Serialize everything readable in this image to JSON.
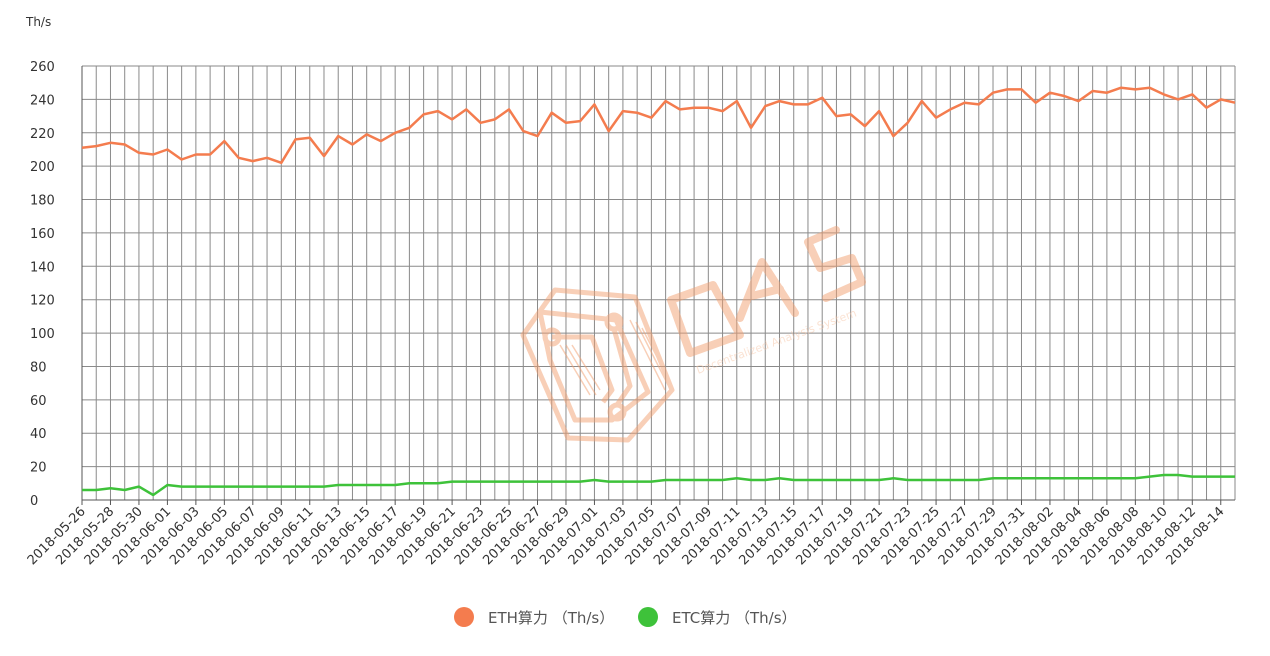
{
  "chart_data": {
    "type": "line",
    "ylabel": "Th/s",
    "ylim": [
      0,
      260
    ],
    "yticks": [
      0,
      20,
      40,
      60,
      80,
      100,
      120,
      140,
      160,
      180,
      200,
      220,
      240,
      260
    ],
    "grid": true,
    "legend_position": "bottom",
    "x_start": "2018-05-26",
    "x_end": "2018-08-14",
    "x_tick_labels": [
      "2018-05-26",
      "2018-05-28",
      "2018-05-30",
      "2018-06-01",
      "2018-06-03",
      "2018-06-05",
      "2018-06-07",
      "2018-06-09",
      "2018-06-11",
      "2018-06-13",
      "2018-06-15",
      "2018-06-17",
      "2018-06-19",
      "2018-06-21",
      "2018-06-23",
      "2018-06-25",
      "2018-06-27",
      "2018-06-29",
      "2018-07-01",
      "2018-07-03",
      "2018-07-05",
      "2018-07-07",
      "2018-07-09",
      "2018-07-11",
      "2018-07-13",
      "2018-07-15",
      "2018-07-17",
      "2018-07-19",
      "2018-07-21",
      "2018-07-23",
      "2018-07-25",
      "2018-07-27",
      "2018-07-29",
      "2018-07-31",
      "2018-08-02",
      "2018-08-04",
      "2018-08-06",
      "2018-08-08",
      "2018-08-10",
      "2018-08-12",
      "2018-08-14"
    ],
    "series": [
      {
        "name": "ETH算力 （Th/s）",
        "color": "#f47c4e",
        "values": [
          211,
          212,
          214,
          213,
          208,
          207,
          210,
          204,
          207,
          207,
          215,
          205,
          203,
          205,
          202,
          216,
          217,
          206,
          218,
          213,
          219,
          215,
          220,
          223,
          231,
          233,
          228,
          234,
          226,
          228,
          234,
          221,
          218,
          232,
          226,
          227,
          237,
          221,
          233,
          232,
          229,
          239,
          234,
          235,
          235,
          233,
          239,
          223,
          236,
          239,
          237,
          237,
          241,
          230,
          231,
          224,
          233,
          218,
          226,
          239,
          229,
          234,
          238,
          237,
          244,
          246,
          246,
          238,
          244,
          242,
          239,
          245,
          244,
          247,
          246,
          247,
          243,
          240,
          243,
          235,
          240,
          238
        ]
      },
      {
        "name": "ETC算力 （Th/s）",
        "color": "#3ec23a",
        "values": [
          6,
          6,
          7,
          6,
          8,
          3,
          9,
          8,
          8,
          8,
          8,
          8,
          8,
          8,
          8,
          8,
          8,
          8,
          9,
          9,
          9,
          9,
          9,
          10,
          10,
          10,
          11,
          11,
          11,
          11,
          11,
          11,
          11,
          11,
          11,
          11,
          12,
          11,
          11,
          11,
          11,
          12,
          12,
          12,
          12,
          12,
          13,
          12,
          12,
          13,
          12,
          12,
          12,
          12,
          12,
          12,
          12,
          13,
          12,
          12,
          12,
          12,
          12,
          12,
          13,
          13,
          13,
          13,
          13,
          13,
          13,
          13,
          13,
          13,
          13,
          14,
          15,
          15,
          14,
          14,
          14,
          14
        ]
      }
    ]
  },
  "watermark": {
    "logo_text": "DAS",
    "tagline": "Decentralized Analysis System",
    "color": "#f6a678"
  }
}
